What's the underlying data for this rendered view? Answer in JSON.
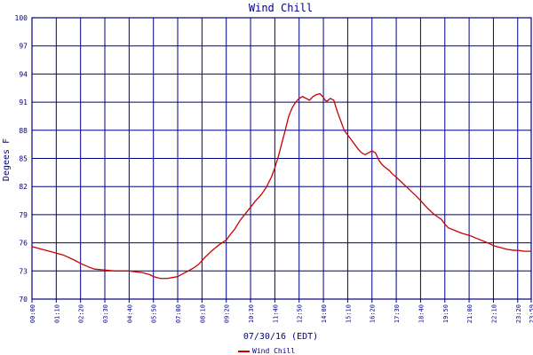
{
  "chart_data": {
    "type": "line",
    "title": "Wind Chill",
    "xlabel": "07/30/16 (EDT)",
    "ylabel": "Degees F",
    "ylim": [
      70,
      100
    ],
    "yticks": [
      "70",
      "73",
      "76",
      "79",
      "82",
      "85",
      "88",
      "91",
      "94",
      "97",
      "100"
    ],
    "xticks": [
      "00:00",
      "01:10",
      "02:20",
      "03:30",
      "04:40",
      "05:50",
      "07:00",
      "08:10",
      "09:20",
      "10:30",
      "11:40",
      "12:50",
      "14:00",
      "15:10",
      "16:20",
      "17:30",
      "18:40",
      "19:50",
      "21:00",
      "22:10",
      "23:20",
      "23:59"
    ],
    "xlim_minutes": [
      0,
      1439
    ],
    "grid": true,
    "legend": "bottom-center",
    "colors": {
      "series": "#cc0000",
      "grid": "#000080",
      "text": "#000080"
    },
    "series": [
      {
        "name": "Wind Chill",
        "x": [
          "00:00",
          "00:30",
          "01:00",
          "01:10",
          "01:30",
          "02:00",
          "02:20",
          "02:45",
          "03:00",
          "03:30",
          "04:00",
          "04:40",
          "05:00",
          "05:20",
          "05:40",
          "05:50",
          "06:10",
          "06:30",
          "06:45",
          "07:00",
          "07:15",
          "07:30",
          "07:45",
          "08:00",
          "08:10",
          "08:20",
          "08:40",
          "09:00",
          "09:20",
          "09:30",
          "09:45",
          "10:00",
          "10:15",
          "10:30",
          "10:45",
          "11:00",
          "11:15",
          "11:30",
          "11:40",
          "11:50",
          "12:00",
          "12:10",
          "12:20",
          "12:30",
          "12:40",
          "12:50",
          "13:00",
          "13:10",
          "13:20",
          "13:30",
          "13:40",
          "13:50",
          "14:00",
          "14:05",
          "14:10",
          "14:20",
          "14:30",
          "14:40",
          "14:50",
          "15:00",
          "15:10",
          "15:20",
          "15:30",
          "15:40",
          "15:50",
          "16:00",
          "16:10",
          "16:20",
          "16:30",
          "16:40",
          "16:50",
          "17:00",
          "17:10",
          "17:20",
          "17:30",
          "17:50",
          "18:10",
          "18:30",
          "18:40",
          "19:00",
          "19:20",
          "19:40",
          "19:50",
          "20:00",
          "20:20",
          "20:40",
          "21:00",
          "21:20",
          "21:40",
          "22:00",
          "22:10",
          "22:30",
          "22:50",
          "23:10",
          "23:20",
          "23:40",
          "23:59"
        ],
        "values": [
          75.6,
          75.3,
          75.0,
          74.9,
          74.7,
          74.2,
          73.8,
          73.4,
          73.2,
          73.1,
          73.0,
          73.0,
          72.9,
          72.8,
          72.6,
          72.4,
          72.2,
          72.2,
          72.3,
          72.4,
          72.7,
          73.0,
          73.3,
          73.7,
          74.1,
          74.5,
          75.2,
          75.8,
          76.3,
          76.8,
          77.5,
          78.4,
          79.1,
          79.8,
          80.5,
          81.1,
          81.9,
          83.0,
          84.0,
          85.2,
          86.6,
          88.0,
          89.5,
          90.4,
          91.0,
          91.4,
          91.6,
          91.4,
          91.2,
          91.6,
          91.8,
          91.9,
          91.5,
          91.2,
          91.1,
          91.4,
          91.2,
          90.0,
          89.0,
          88.0,
          87.5,
          87.0,
          86.5,
          86.0,
          85.6,
          85.4,
          85.6,
          85.8,
          85.6,
          84.8,
          84.3,
          84.0,
          83.7,
          83.3,
          83.0,
          82.3,
          81.6,
          80.9,
          80.5,
          79.7,
          79.0,
          78.5,
          78.0,
          77.6,
          77.3,
          77.0,
          76.8,
          76.5,
          76.2,
          75.9,
          75.7,
          75.5,
          75.3,
          75.2,
          75.2,
          75.1,
          75.1
        ]
      }
    ]
  }
}
